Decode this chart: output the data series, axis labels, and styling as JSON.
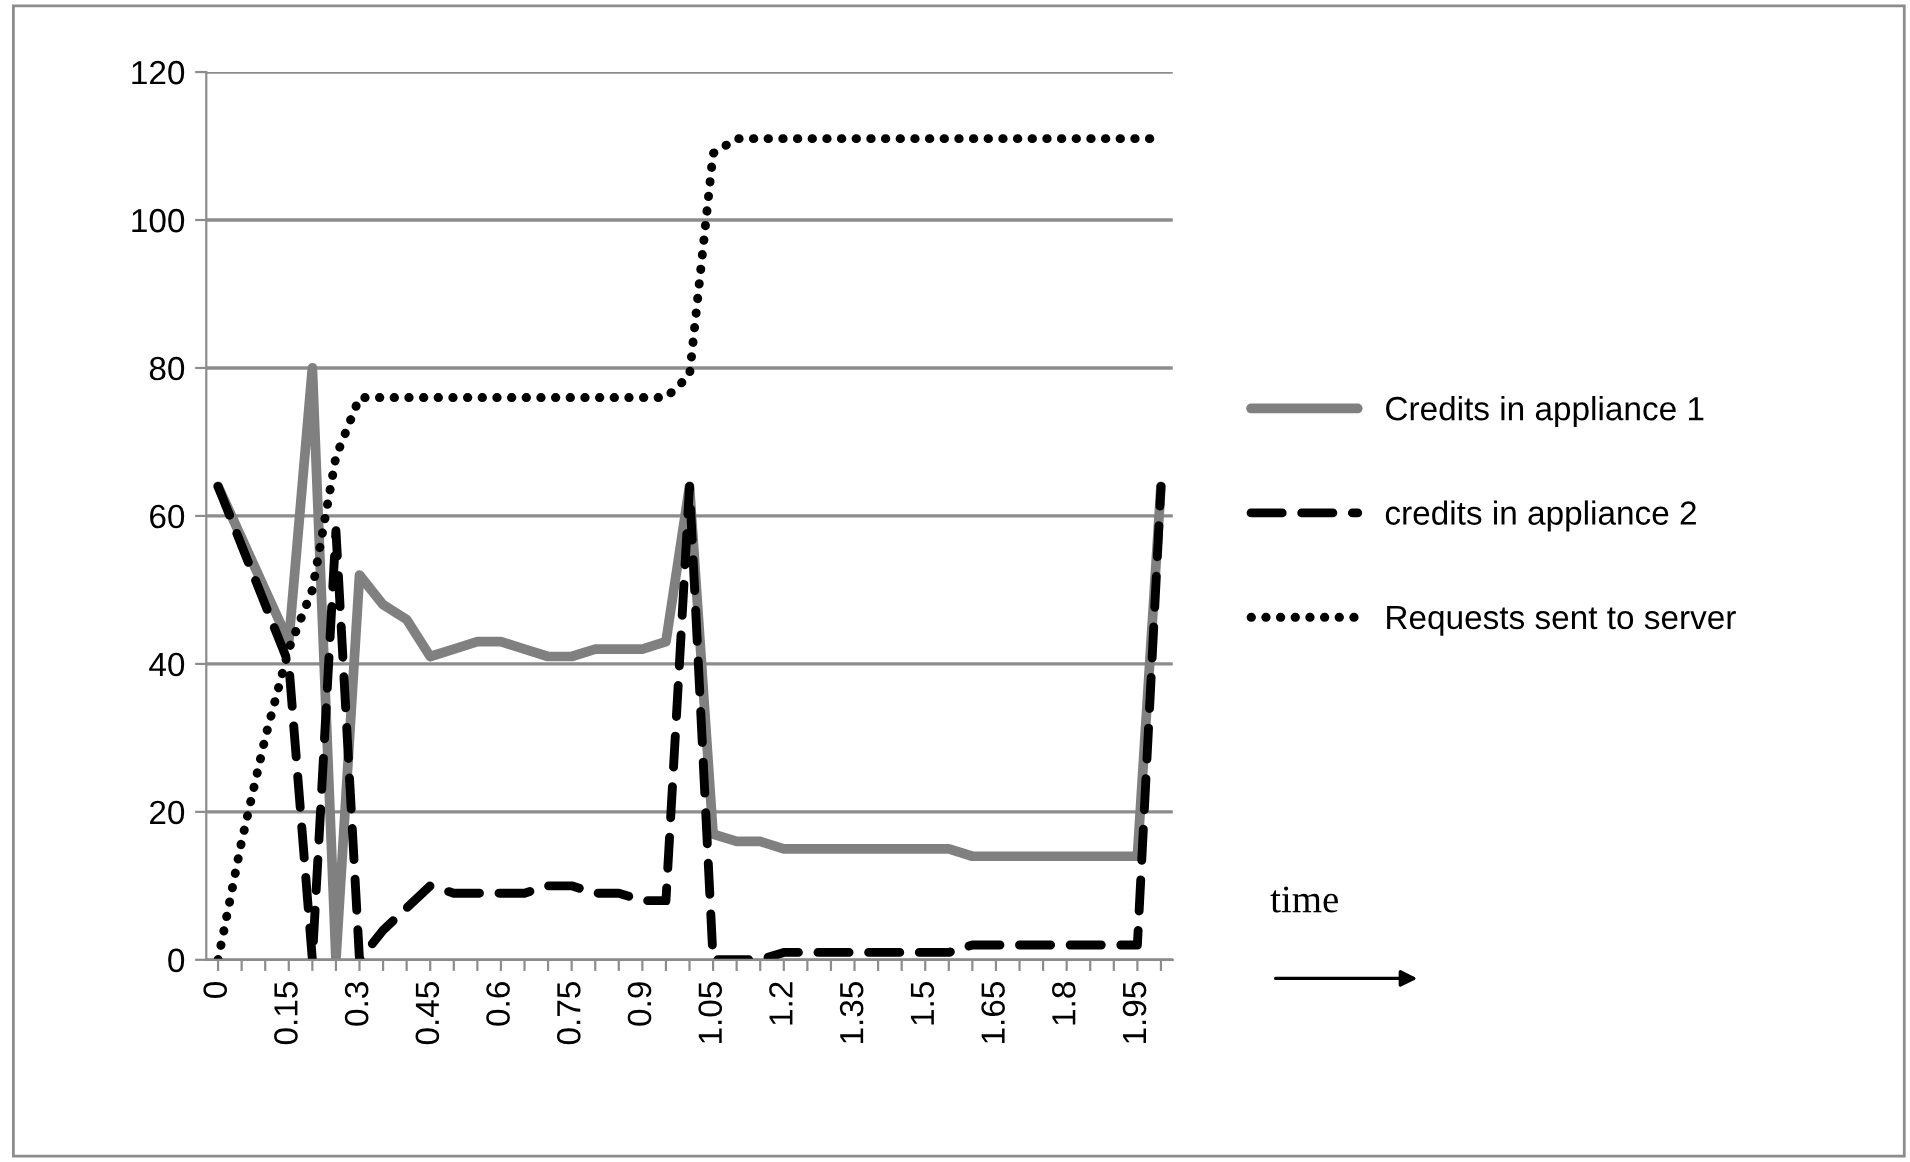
{
  "chart_data": {
    "type": "line",
    "categories": [
      "0",
      null,
      null,
      "0.15",
      null,
      null,
      "0.3",
      null,
      null,
      "0.45",
      null,
      null,
      "0.6",
      null,
      null,
      "0.75",
      null,
      null,
      "0.9",
      null,
      null,
      "1.05",
      null,
      null,
      "1.2",
      null,
      null,
      "1.35",
      null,
      null,
      "1.5",
      null,
      null,
      "1.65",
      null,
      null,
      "1.8",
      null,
      null,
      "1.95",
      null
    ],
    "series": [
      {
        "name": "Credits in appliance 1",
        "color": "#808080",
        "line_style": "solid",
        "values": [
          64,
          57,
          50,
          43,
          80,
          0,
          52,
          48,
          46,
          41,
          42,
          43,
          43,
          42,
          41,
          41,
          42,
          42,
          42,
          43,
          64,
          17,
          16,
          16,
          15,
          15,
          15,
          15,
          15,
          15,
          15,
          15,
          14,
          14,
          14,
          14,
          14,
          14,
          14,
          14,
          64
        ]
      },
      {
        "name": "credits in appliance 2",
        "color": "#000000",
        "line_style": "dashed",
        "values": [
          64,
          56,
          48,
          40,
          0,
          58,
          0,
          4,
          7,
          10,
          9,
          9,
          9,
          9,
          10,
          10,
          9,
          9,
          8,
          8,
          64,
          0,
          0,
          0,
          1,
          1,
          1,
          1,
          1,
          1,
          1,
          1,
          2,
          2,
          2,
          2,
          2,
          2,
          2,
          2,
          64
        ]
      },
      {
        "name": "Requests sent to server",
        "color": "#000000",
        "line_style": "dotted",
        "values": [
          0,
          16,
          30,
          42,
          50,
          68,
          76,
          76,
          76,
          76,
          76,
          76,
          76,
          76,
          76,
          76,
          76,
          76,
          76,
          76,
          79,
          109,
          111,
          111,
          111,
          111,
          111,
          111,
          111,
          111,
          111,
          111,
          111,
          111,
          111,
          111,
          111,
          111,
          111,
          111,
          111
        ]
      }
    ],
    "ylim": [
      0,
      120
    ],
    "yticks": [
      0,
      20,
      40,
      60,
      80,
      100,
      120
    ],
    "grid": "y",
    "legend": "right",
    "marker": "none",
    "annotations": [
      "time"
    ]
  }
}
